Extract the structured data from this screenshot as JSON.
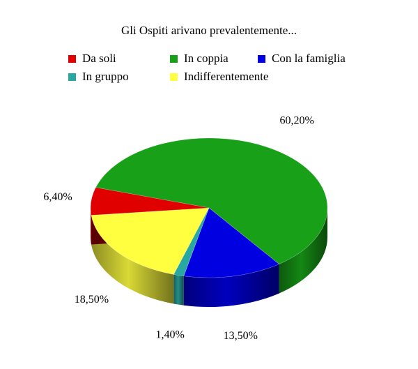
{
  "chart_data": {
    "type": "pie",
    "title": "Gli Ospiti arivano prevalentemente...",
    "categories": [
      "Da soli",
      "In coppia",
      "Con la famiglia",
      "In gruppo",
      "Indifferentemente"
    ],
    "values": [
      6.4,
      60.2,
      13.5,
      1.4,
      18.5
    ],
    "value_labels": [
      "6,40%",
      "60,20%",
      "13,50%",
      "1,40%",
      "18,50%"
    ],
    "colors": [
      "#e00000",
      "#18a018",
      "#0000e0",
      "#28a8a0",
      "#ffff40"
    ],
    "legend_placement": "top",
    "three_d": true,
    "grid": false
  }
}
